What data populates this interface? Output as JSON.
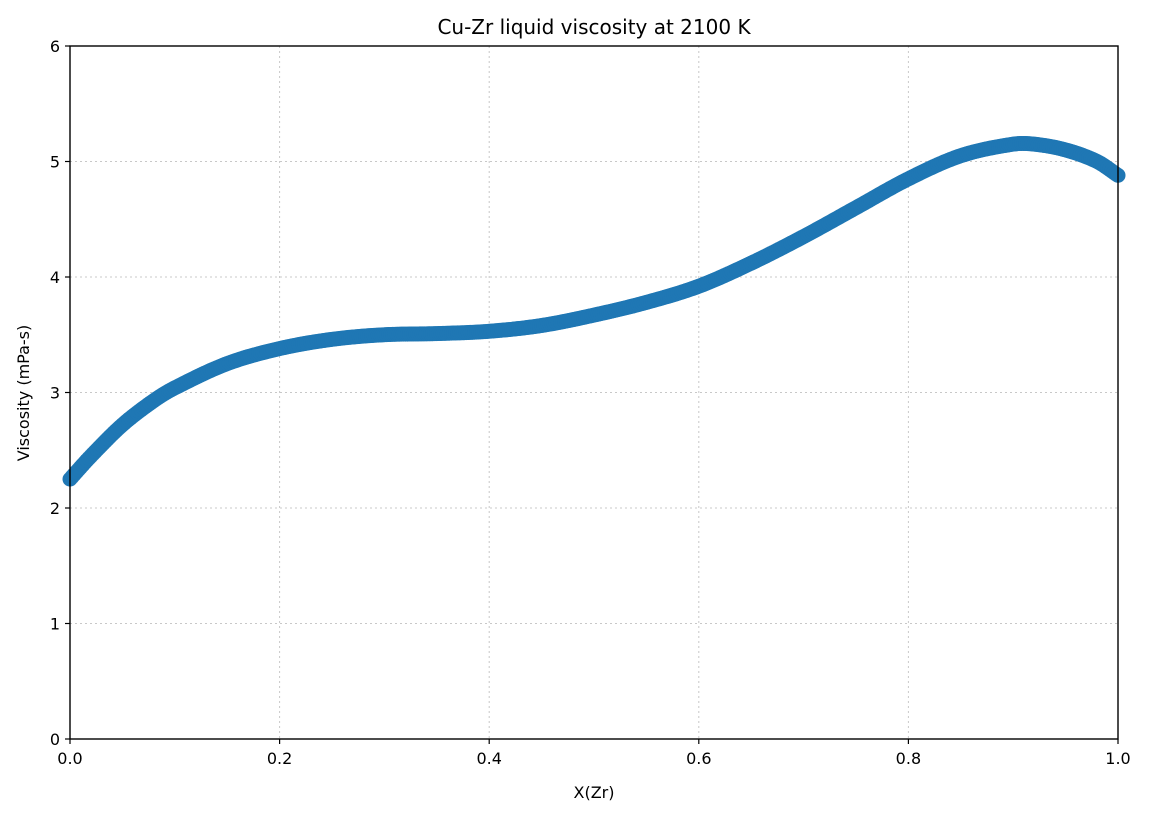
{
  "chart_data": {
    "type": "scatter",
    "title": "Cu-Zr liquid viscosity at 2100 K",
    "xlabel": "X(Zr)",
    "ylabel": "Viscosity (mPa-s)",
    "xlim": [
      0.0,
      1.0
    ],
    "ylim": [
      0,
      6
    ],
    "xticks": [
      "0.0",
      "0.2",
      "0.4",
      "0.6",
      "0.8",
      "1.0"
    ],
    "yticks": [
      "0",
      "1",
      "2",
      "3",
      "4",
      "5",
      "6"
    ],
    "grid": true,
    "legend": false,
    "series": [
      {
        "color": "#1f77b4",
        "x": [
          0.0,
          0.02,
          0.05,
          0.08,
          0.1,
          0.15,
          0.2,
          0.25,
          0.3,
          0.35,
          0.4,
          0.45,
          0.5,
          0.55,
          0.6,
          0.65,
          0.7,
          0.75,
          0.8,
          0.85,
          0.9,
          0.92,
          0.95,
          0.98,
          1.0
        ],
        "y": [
          2.25,
          2.45,
          2.72,
          2.93,
          3.04,
          3.25,
          3.38,
          3.46,
          3.5,
          3.51,
          3.53,
          3.58,
          3.67,
          3.78,
          3.92,
          4.12,
          4.35,
          4.6,
          4.85,
          5.05,
          5.15,
          5.15,
          5.1,
          5.0,
          4.88
        ]
      }
    ]
  }
}
